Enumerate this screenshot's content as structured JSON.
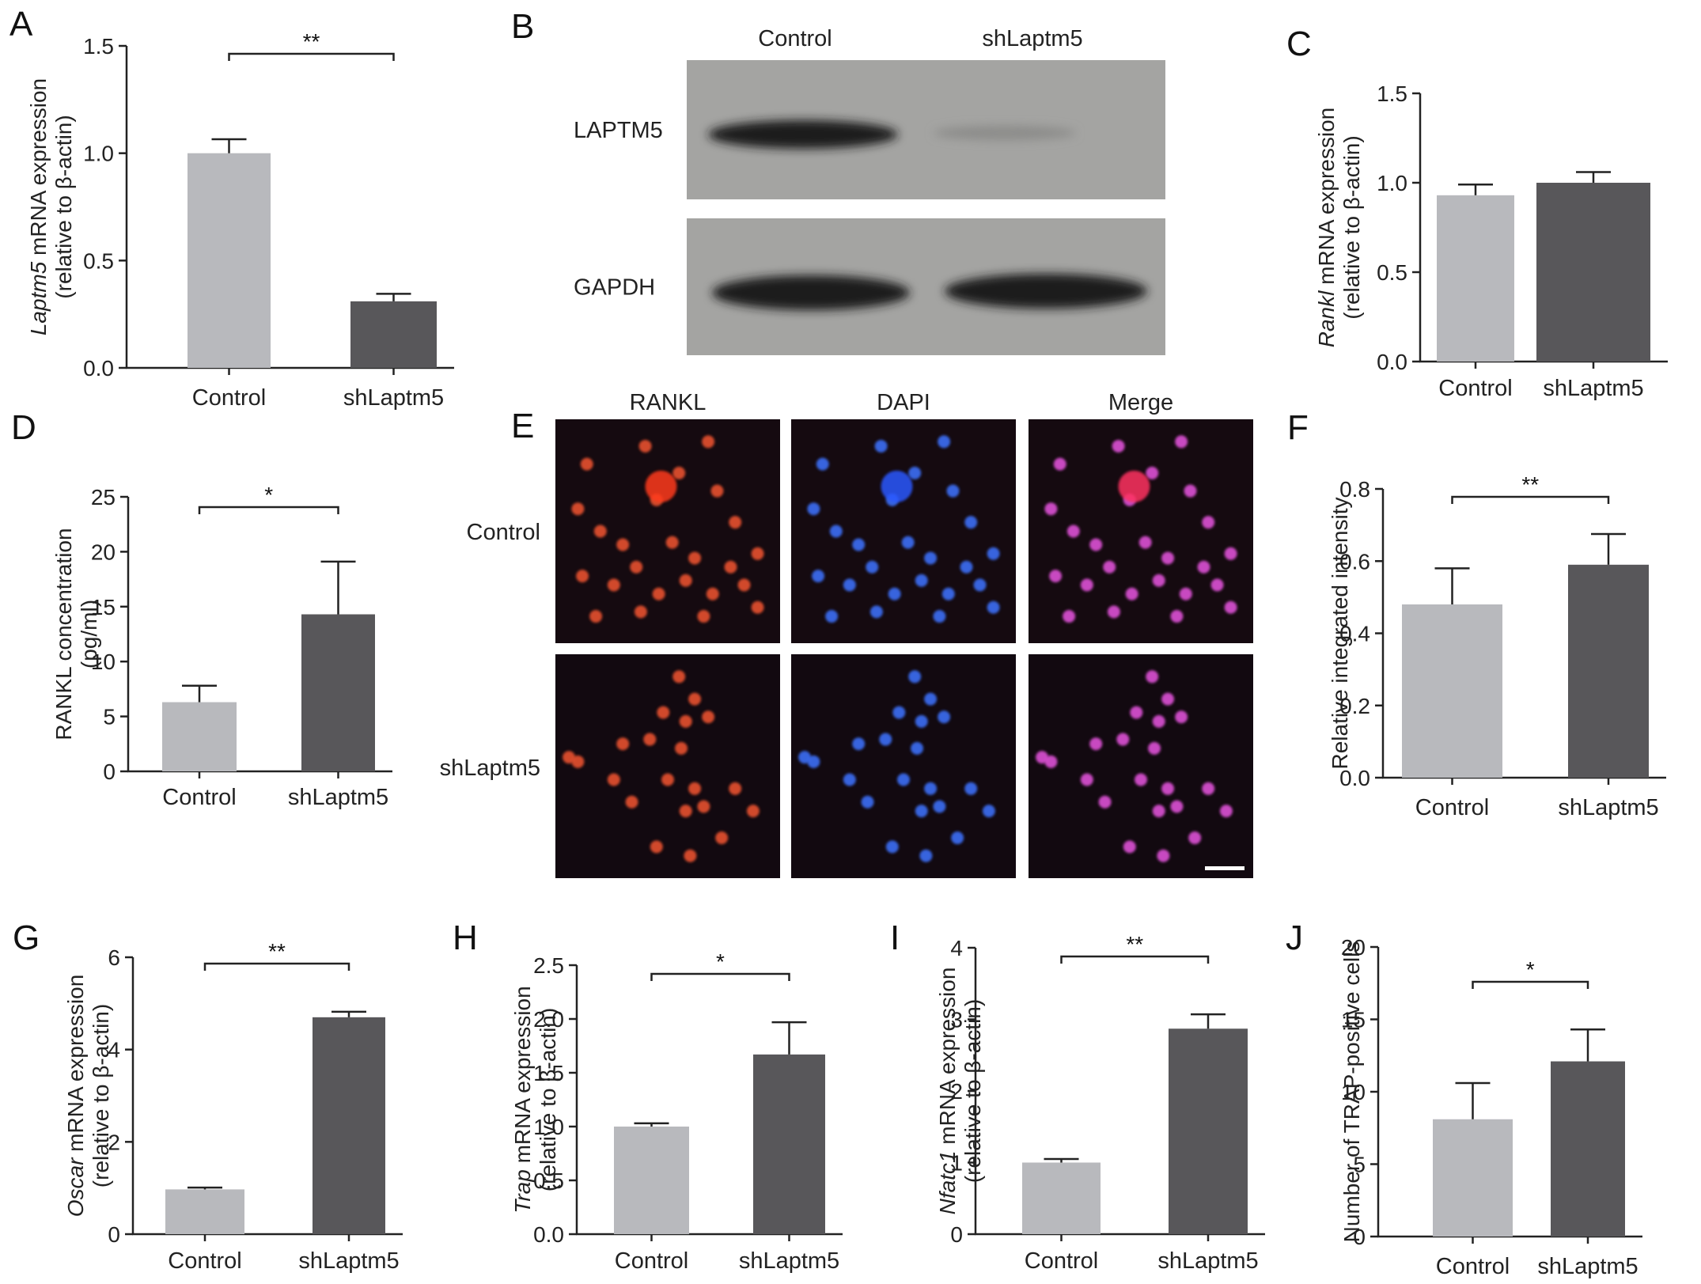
{
  "colors": {
    "control": "#b8b9bd",
    "shlaptm5": "#58575a",
    "axis": "#222222"
  },
  "chart_data": [
    {
      "panel": "A",
      "type": "bar",
      "categories": [
        "Control",
        "shLaptm5"
      ],
      "values": [
        1.0,
        0.31
      ],
      "errors": [
        0.065,
        0.035
      ],
      "ylim": [
        0,
        1.5
      ],
      "yticks": [
        "0.0",
        "0.5",
        "1.0",
        "1.5"
      ],
      "ytick_values": [
        0,
        0.5,
        1.0,
        1.5
      ],
      "ylabel_italic": "Laptm5",
      "ylabel_line1": " mRNA expression",
      "ylabel_line2": "(relative to β-actin)",
      "significance": "**"
    },
    {
      "panel": "C",
      "type": "bar",
      "categories": [
        "Control",
        "shLaptm5"
      ],
      "values": [
        0.93,
        1.0
      ],
      "errors": [
        0.06,
        0.06
      ],
      "ylim": [
        0,
        1.5
      ],
      "yticks": [
        "0.0",
        "0.5",
        "1.0",
        "1.5"
      ],
      "ytick_values": [
        0,
        0.5,
        1.0,
        1.5
      ],
      "ylabel_italic": "Rankl",
      "ylabel_line1": " mRNA expression",
      "ylabel_line2": "(relative to β-actin)",
      "significance": ""
    },
    {
      "panel": "D",
      "type": "bar",
      "categories": [
        "Control",
        "shLaptm5"
      ],
      "values": [
        6.3,
        14.3
      ],
      "errors": [
        1.5,
        4.8
      ],
      "ylim": [
        0,
        25
      ],
      "yticks": [
        "0",
        "5",
        "10",
        "15",
        "20",
        "25"
      ],
      "ytick_values": [
        0,
        5,
        10,
        15,
        20,
        25
      ],
      "ylabel_italic": "",
      "ylabel_line1": "RANKL concentration",
      "ylabel_line2": "(pg/ml)",
      "significance": "*"
    },
    {
      "panel": "F",
      "type": "bar",
      "categories": [
        "Control",
        "shLaptm5"
      ],
      "values": [
        0.48,
        0.59
      ],
      "errors": [
        0.1,
        0.085
      ],
      "ylim": [
        0,
        0.8
      ],
      "yticks": [
        "0.0",
        "0.2",
        "0.4",
        "0.6",
        "0.8"
      ],
      "ytick_values": [
        0,
        0.2,
        0.4,
        0.6,
        0.8
      ],
      "ylabel_italic": "",
      "ylabel_line1": "Relative integrated intensity",
      "ylabel_line2": "",
      "significance": "**"
    },
    {
      "panel": "G",
      "type": "bar",
      "categories": [
        "Control",
        "shLaptm5"
      ],
      "values": [
        0.97,
        4.7
      ],
      "errors": [
        0.04,
        0.12
      ],
      "ylim": [
        0,
        6
      ],
      "yticks": [
        "0",
        "2",
        "4",
        "6"
      ],
      "ytick_values": [
        0,
        2,
        4,
        6
      ],
      "ylabel_italic": "Oscar",
      "ylabel_line1": " mRNA expression",
      "ylabel_line2": "(relative to β-actin)",
      "significance": "**"
    },
    {
      "panel": "H",
      "type": "bar",
      "categories": [
        "Control",
        "shLaptm5"
      ],
      "values": [
        1.0,
        1.67
      ],
      "errors": [
        0.03,
        0.3
      ],
      "ylim": [
        0,
        2.5
      ],
      "yticks": [
        "0.0",
        "0.5",
        "1.0",
        "1.5",
        "2.0",
        "2.5"
      ],
      "ytick_values": [
        0,
        0.5,
        1.0,
        1.5,
        2.0,
        2.5
      ],
      "ylabel_italic": "Trap",
      "ylabel_line1": " mRNA expression",
      "ylabel_line2": "(relative to β-actin)",
      "significance": "*"
    },
    {
      "panel": "I",
      "type": "bar",
      "categories": [
        "Control",
        "shLaptm5"
      ],
      "values": [
        1.0,
        2.87
      ],
      "errors": [
        0.05,
        0.2
      ],
      "ylim": [
        0,
        4
      ],
      "yticks": [
        "0",
        "1",
        "2",
        "3",
        "4"
      ],
      "ytick_values": [
        0,
        1,
        2,
        3,
        4
      ],
      "ylabel_italic": "Nfatc1",
      "ylabel_line1": " mRNA expression",
      "ylabel_line2": "(relative to β-actin)",
      "significance": "**"
    },
    {
      "panel": "J",
      "type": "bar",
      "categories": [
        "Control",
        "shLaptm5"
      ],
      "values": [
        8.1,
        12.1
      ],
      "errors": [
        2.5,
        2.2
      ],
      "ylim": [
        0,
        20
      ],
      "yticks": [
        "0",
        "5",
        "10",
        "15",
        "20"
      ],
      "ytick_values": [
        0,
        5,
        10,
        15,
        20
      ],
      "ylabel_italic": "",
      "ylabel_line1": "Number of TRAP-positive cells",
      "ylabel_line2": "",
      "significance": "*"
    }
  ],
  "western_blot": {
    "panel": "B",
    "columns": [
      "Control",
      "shLaptm5"
    ],
    "rows": [
      "LAPTM5",
      "GAPDH"
    ]
  },
  "immunofluorescence": {
    "panel": "E",
    "columns": [
      "RANKL",
      "DAPI",
      "Merge"
    ],
    "rows": [
      "Control",
      "shLaptm5"
    ]
  }
}
